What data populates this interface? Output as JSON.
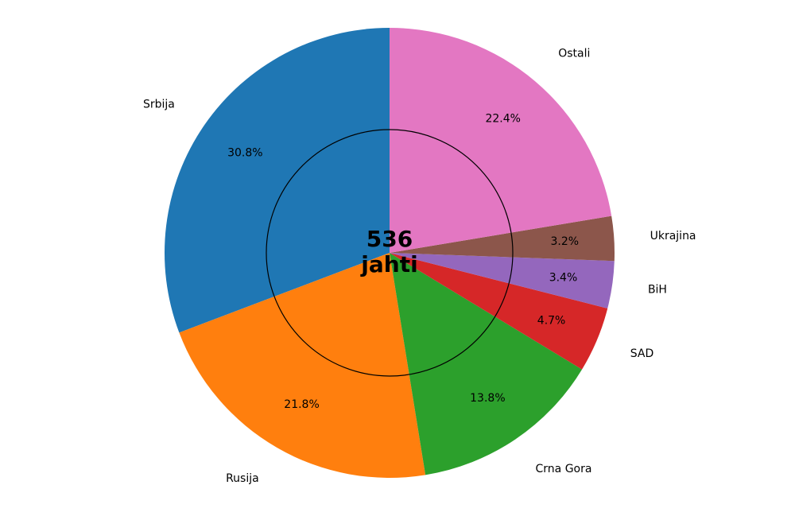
{
  "chart_data": {
    "type": "pie",
    "categories": [
      "Srbija",
      "Rusija",
      "Crna Gora",
      "SAD",
      "BiH",
      "Ukrajina",
      "Ostali"
    ],
    "values": [
      30.8,
      21.8,
      13.8,
      4.7,
      3.4,
      3.2,
      22.4
    ],
    "value_labels": [
      "30.8%",
      "21.8%",
      "13.8%",
      "4.7%",
      "3.4%",
      "3.2%",
      "22.4%"
    ],
    "colors": [
      "#1f77b4",
      "#ff7f0e",
      "#2ca02c",
      "#d62728",
      "#9467bd",
      "#8c564b",
      "#e377c2"
    ],
    "start_angle": 90,
    "center_label": [
      "536",
      "jahti"
    ]
  }
}
